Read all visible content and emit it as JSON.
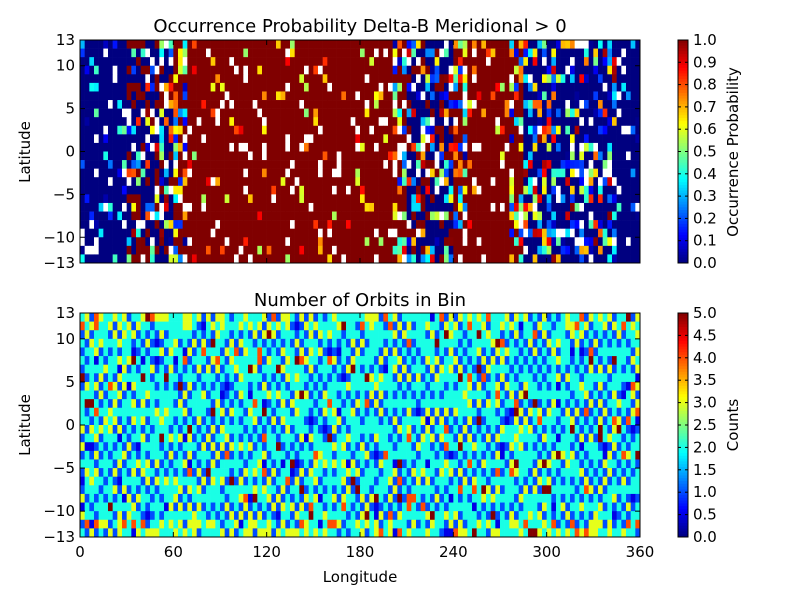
{
  "figure": {
    "colormap": "jet",
    "background": "#ffffff"
  },
  "chart_data": [
    {
      "type": "heatmap",
      "title": "Occurrence Probability Delta-B Meridional > 0",
      "ylabel": "Latitude",
      "xlim": [
        0,
        360
      ],
      "ylim": [
        -13,
        13
      ],
      "yticks": [
        -13,
        -10,
        -5,
        0,
        5,
        10,
        13
      ],
      "grid": {
        "x_bins": 120,
        "y_bins": 26,
        "bin_width_deg": 3,
        "bin_height_deg": 1
      },
      "colorbar": {
        "label": "Occurrence Probability",
        "range": [
          0.0,
          1.0
        ],
        "ticks": [
          "0.0",
          "0.1",
          "0.2",
          "0.3",
          "0.4",
          "0.5",
          "0.6",
          "0.7",
          "0.8",
          "0.9",
          "1.0"
        ]
      },
      "missing_color": "#ffffff",
      "pattern": {
        "high_regions_lon": [
          [
            60,
            210
          ],
          [
            240,
            285
          ]
        ],
        "moderate_region_lon": [
          285,
          345
        ],
        "low_regions_lon": [
          [
            0,
            30
          ],
          [
            345,
            360
          ]
        ],
        "description_values": "mostly 1.0 inside high regions, mostly 0.0 in low regions, mixed near edges, sparse missing bins"
      }
    },
    {
      "type": "heatmap",
      "title": "Number of Orbits in Bin",
      "xlabel": "Longitude",
      "ylabel": "Latitude",
      "xlim": [
        0,
        360
      ],
      "ylim": [
        -13,
        13
      ],
      "xticks": [
        0,
        60,
        120,
        180,
        240,
        300,
        360
      ],
      "yticks": [
        -13,
        -10,
        -5,
        0,
        5,
        10,
        13
      ],
      "grid": {
        "x_bins": 120,
        "y_bins": 26,
        "bin_width_deg": 3,
        "bin_height_deg": 1
      },
      "colorbar": {
        "label": "Counts",
        "range": [
          0.0,
          5.0
        ],
        "ticks": [
          "0.0",
          "0.5",
          "1.0",
          "1.5",
          "2.0",
          "2.5",
          "3.0",
          "3.5",
          "4.0",
          "4.5",
          "5.0"
        ]
      },
      "pattern": {
        "typical_counts": [
          1,
          2,
          3
        ],
        "occasional_counts": [
          4,
          5
        ],
        "description_values": "checkerboard of 1-3 orbits per bin with a few 4-5 bins, higher counts near latitude edges"
      }
    }
  ]
}
